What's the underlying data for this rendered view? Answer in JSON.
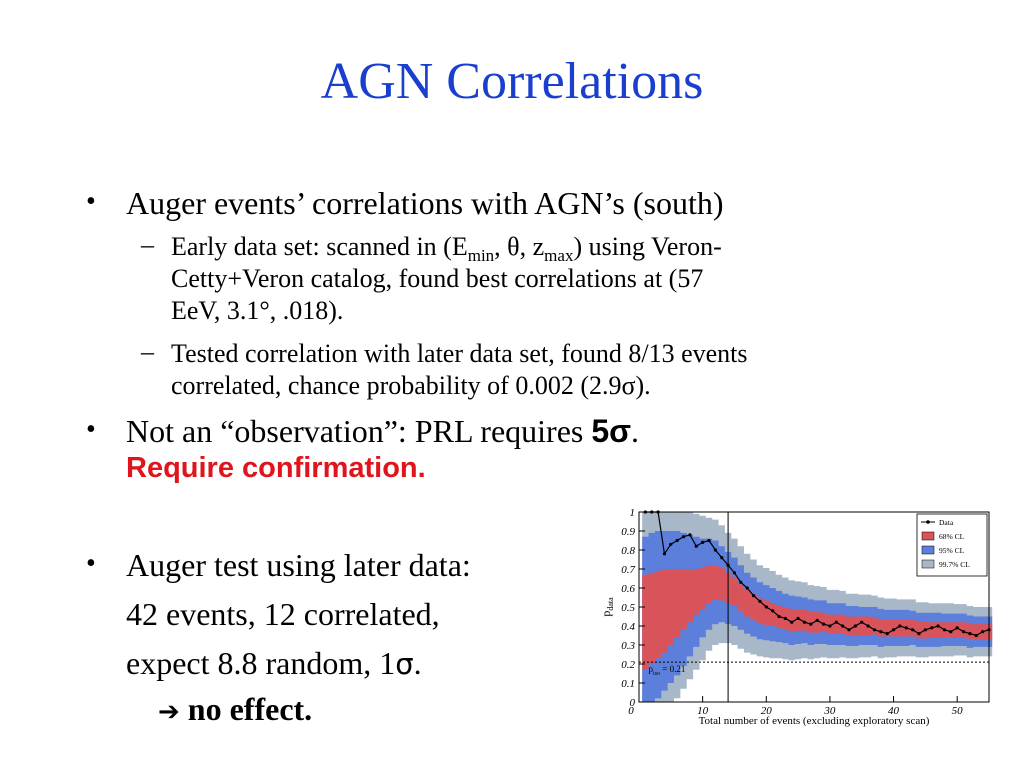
{
  "slide": {
    "title": "AGN Correlations",
    "bullets": {
      "b1": "Auger events’ correlations with AGN’s (south)",
      "s1": {
        "t1": "Early data set:  scanned in (E",
        "sub1": "min",
        "t2": ", θ, z",
        "sub2": "max",
        "t3": ") using Veron-",
        "line2": "Cetty+Veron catalog, found best correlations at (57",
        "line3": "EeV, 3.1°, .018)."
      },
      "s2": {
        "line1": "Tested correlation with later data set, found 8/13 events",
        "line2": "correlated, chance probability of 0.002 (2.9σ)."
      },
      "b2": {
        "pre": "Not an “observation”:  PRL requires ",
        "sigma": "5σ",
        "post": ".",
        "red": "Require confirmation."
      },
      "b3": {
        "line1": "Auger test using later data:",
        "line2": "42 events, 12 correlated,",
        "line3a": "expect 8.8 random, 1",
        "line3sigma": "σ",
        "line3b": ".",
        "arrow": "➔",
        "conclusion": "no effect."
      }
    }
  },
  "chart_data": {
    "type": "line",
    "xlabel": "Total number of events (excluding exploratory scan)",
    "ylabel": "p",
    "ylabel_sub": "data",
    "xlim": [
      0,
      55
    ],
    "ylim": [
      0,
      1
    ],
    "xticks": [
      10,
      20,
      30,
      40,
      50
    ],
    "yticks": [
      0,
      0.1,
      0.2,
      0.3,
      0.4,
      0.5,
      0.6,
      0.7,
      0.8,
      0.9,
      1
    ],
    "ytick_labels": [
      "0",
      "0.1",
      "0.2",
      "0.3",
      "0.4",
      "0.5",
      "0.6",
      "0.7",
      "0.8",
      "0.9",
      "1"
    ],
    "xtick_labels": [
      "10",
      "20",
      "30",
      "40",
      "50"
    ],
    "vline_x": 14,
    "hline": {
      "y": 0.21,
      "label": "p",
      "label_sub": "iso",
      "label_val": "= 0.21"
    },
    "legend": [
      "Data",
      "68% CL",
      "95% CL",
      "99.7% CL"
    ],
    "legend_placement": "top-right",
    "colors": {
      "data": "#000000",
      "cl68": "#d9535b",
      "cl95": "#5b7fdb",
      "cl997": "#a8b8c8"
    },
    "series": [
      {
        "name": "Data",
        "x": [
          1,
          2,
          3,
          4,
          5,
          6,
          7,
          8,
          9,
          10,
          11,
          12,
          13,
          14,
          15,
          16,
          17,
          18,
          19,
          20,
          21,
          22,
          23,
          24,
          25,
          26,
          27,
          28,
          29,
          30,
          31,
          32,
          33,
          34,
          35,
          36,
          37,
          38,
          39,
          40,
          41,
          42,
          43,
          44,
          45,
          46,
          47,
          48,
          49,
          50,
          51,
          52,
          53,
          54,
          55
        ],
        "y": [
          1,
          1,
          1,
          0.78,
          0.83,
          0.85,
          0.87,
          0.88,
          0.82,
          0.84,
          0.85,
          0.8,
          0.76,
          0.72,
          0.68,
          0.63,
          0.6,
          0.56,
          0.53,
          0.5,
          0.48,
          0.45,
          0.44,
          0.42,
          0.44,
          0.42,
          0.41,
          0.43,
          0.41,
          0.4,
          0.42,
          0.4,
          0.38,
          0.4,
          0.42,
          0.4,
          0.38,
          0.37,
          0.36,
          0.38,
          0.4,
          0.39,
          0.38,
          0.36,
          0.38,
          0.39,
          0.4,
          0.38,
          0.37,
          0.39,
          0.37,
          0.36,
          0.35,
          0.37,
          0.38
        ]
      }
    ],
    "band_centers": [
      0.42,
      0.44,
      0.46,
      0.48,
      0.5,
      0.52,
      0.54,
      0.56,
      0.58,
      0.6,
      0.62,
      0.63,
      0.62,
      0.6,
      0.58,
      0.55,
      0.52,
      0.5,
      0.48,
      0.47,
      0.46,
      0.45,
      0.44,
      0.43,
      0.43,
      0.43,
      0.42,
      0.42,
      0.42,
      0.41,
      0.41,
      0.41,
      0.4,
      0.4,
      0.4,
      0.4,
      0.4,
      0.39,
      0.39,
      0.39,
      0.39,
      0.39,
      0.39,
      0.38,
      0.38,
      0.38,
      0.38,
      0.38,
      0.38,
      0.38,
      0.38,
      0.37,
      0.37,
      0.37,
      0.37
    ],
    "band_half_widths": {
      "cl68": [
        0.25,
        0.24,
        0.23,
        0.22,
        0.2,
        0.18,
        0.16,
        0.14,
        0.12,
        0.11,
        0.1,
        0.09,
        0.085,
        0.08,
        0.075,
        0.07,
        0.07,
        0.07,
        0.065,
        0.065,
        0.06,
        0.06,
        0.06,
        0.06,
        0.055,
        0.055,
        0.055,
        0.055,
        0.05,
        0.05,
        0.05,
        0.05,
        0.05,
        0.05,
        0.05,
        0.05,
        0.045,
        0.045,
        0.045,
        0.045,
        0.045,
        0.045,
        0.045,
        0.045,
        0.045,
        0.04,
        0.04,
        0.04,
        0.04,
        0.04,
        0.04,
        0.04,
        0.04,
        0.04,
        0.04
      ],
      "cl95": [
        0.45,
        0.45,
        0.44,
        0.42,
        0.4,
        0.38,
        0.35,
        0.32,
        0.29,
        0.26,
        0.24,
        0.22,
        0.2,
        0.19,
        0.18,
        0.17,
        0.16,
        0.155,
        0.15,
        0.145,
        0.14,
        0.135,
        0.13,
        0.13,
        0.125,
        0.12,
        0.12,
        0.115,
        0.115,
        0.11,
        0.11,
        0.11,
        0.105,
        0.105,
        0.1,
        0.1,
        0.1,
        0.1,
        0.095,
        0.095,
        0.095,
        0.095,
        0.09,
        0.09,
        0.09,
        0.09,
        0.09,
        0.085,
        0.085,
        0.085,
        0.085,
        0.085,
        0.08,
        0.08,
        0.08
      ],
      "cl997": [
        0.58,
        0.57,
        0.56,
        0.54,
        0.52,
        0.5,
        0.47,
        0.44,
        0.41,
        0.38,
        0.35,
        0.33,
        0.31,
        0.29,
        0.28,
        0.27,
        0.26,
        0.25,
        0.24,
        0.235,
        0.23,
        0.22,
        0.215,
        0.21,
        0.205,
        0.2,
        0.195,
        0.19,
        0.185,
        0.18,
        0.18,
        0.175,
        0.17,
        0.17,
        0.165,
        0.165,
        0.16,
        0.16,
        0.155,
        0.155,
        0.15,
        0.15,
        0.15,
        0.145,
        0.145,
        0.14,
        0.14,
        0.14,
        0.14,
        0.135,
        0.135,
        0.135,
        0.13,
        0.13,
        0.13
      ]
    }
  }
}
